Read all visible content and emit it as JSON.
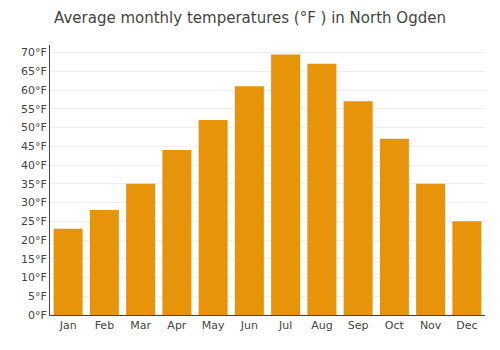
{
  "chart_data": {
    "type": "bar",
    "title": "Average monthly temperatures (°F ) in North Ogden",
    "categories": [
      "Jan",
      "Feb",
      "Mar",
      "Apr",
      "May",
      "Jun",
      "Jul",
      "Aug",
      "Sep",
      "Oct",
      "Nov",
      "Dec"
    ],
    "values": [
      23,
      28,
      35,
      44,
      52,
      61,
      69.5,
      67,
      57,
      47,
      35,
      25
    ],
    "color": "#E8940A",
    "ylim": [
      0,
      72
    ],
    "yticks": [
      {
        "value": 0,
        "label": "0°F"
      },
      {
        "value": 5,
        "label": "5°F"
      },
      {
        "value": 10,
        "label": "10°F"
      },
      {
        "value": 15,
        "label": "15°F"
      },
      {
        "value": 20,
        "label": "20°F"
      },
      {
        "value": 25,
        "label": "25°F"
      },
      {
        "value": 30,
        "label": "30°F"
      },
      {
        "value": 35,
        "label": "35°F"
      },
      {
        "value": 40,
        "label": "40°F"
      },
      {
        "value": 45,
        "label": "45°F"
      },
      {
        "value": 50,
        "label": "50°F"
      },
      {
        "value": 55,
        "label": "55°F"
      },
      {
        "value": 60,
        "label": "60°F"
      },
      {
        "value": 65,
        "label": "65°F"
      },
      {
        "value": 70,
        "label": "70°F"
      }
    ],
    "grid": true
  }
}
